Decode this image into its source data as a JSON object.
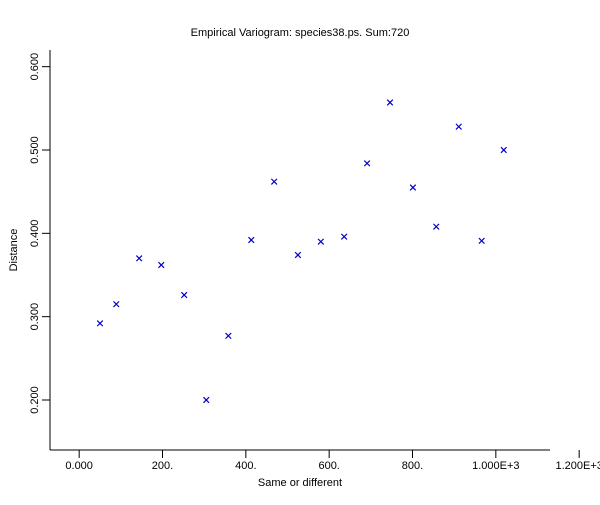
{
  "chart_data": {
    "type": "scatter",
    "title": "Empirical Variogram: species38.ps. Sum:720",
    "xlabel": "Same or different",
    "ylabel": "Distance",
    "xlim": [
      -70,
      1130
    ],
    "ylim": [
      0.14,
      0.62
    ],
    "xticks": [
      {
        "value": 0,
        "label": "0.000"
      },
      {
        "value": 200,
        "label": "200."
      },
      {
        "value": 400,
        "label": "400."
      },
      {
        "value": 600,
        "label": "600."
      },
      {
        "value": 800,
        "label": "800."
      },
      {
        "value": 1000,
        "label": "1.000E+3"
      },
      {
        "value": 1200,
        "label": "1.200E+3"
      }
    ],
    "yticks": [
      {
        "value": 0.2,
        "label": "0.200"
      },
      {
        "value": 0.3,
        "label": "0.300"
      },
      {
        "value": 0.4,
        "label": "0.400"
      },
      {
        "value": 0.5,
        "label": "0.500"
      },
      {
        "value": 0.6,
        "label": "0.600"
      }
    ],
    "grid": false,
    "marker": "x",
    "marker_color": "#0000cc",
    "axis_color": "#000000",
    "points": [
      {
        "x": 50,
        "y": 0.292
      },
      {
        "x": 89,
        "y": 0.315
      },
      {
        "x": 144,
        "y": 0.37
      },
      {
        "x": 197,
        "y": 0.362
      },
      {
        "x": 252,
        "y": 0.326
      },
      {
        "x": 305,
        "y": 0.2
      },
      {
        "x": 358,
        "y": 0.277
      },
      {
        "x": 413,
        "y": 0.392
      },
      {
        "x": 468,
        "y": 0.462
      },
      {
        "x": 525,
        "y": 0.374
      },
      {
        "x": 580,
        "y": 0.39
      },
      {
        "x": 636,
        "y": 0.396
      },
      {
        "x": 691,
        "y": 0.484
      },
      {
        "x": 746,
        "y": 0.557
      },
      {
        "x": 801,
        "y": 0.455
      },
      {
        "x": 857,
        "y": 0.408
      },
      {
        "x": 911,
        "y": 0.528
      },
      {
        "x": 966,
        "y": 0.391
      },
      {
        "x": 1019,
        "y": 0.5
      }
    ]
  }
}
